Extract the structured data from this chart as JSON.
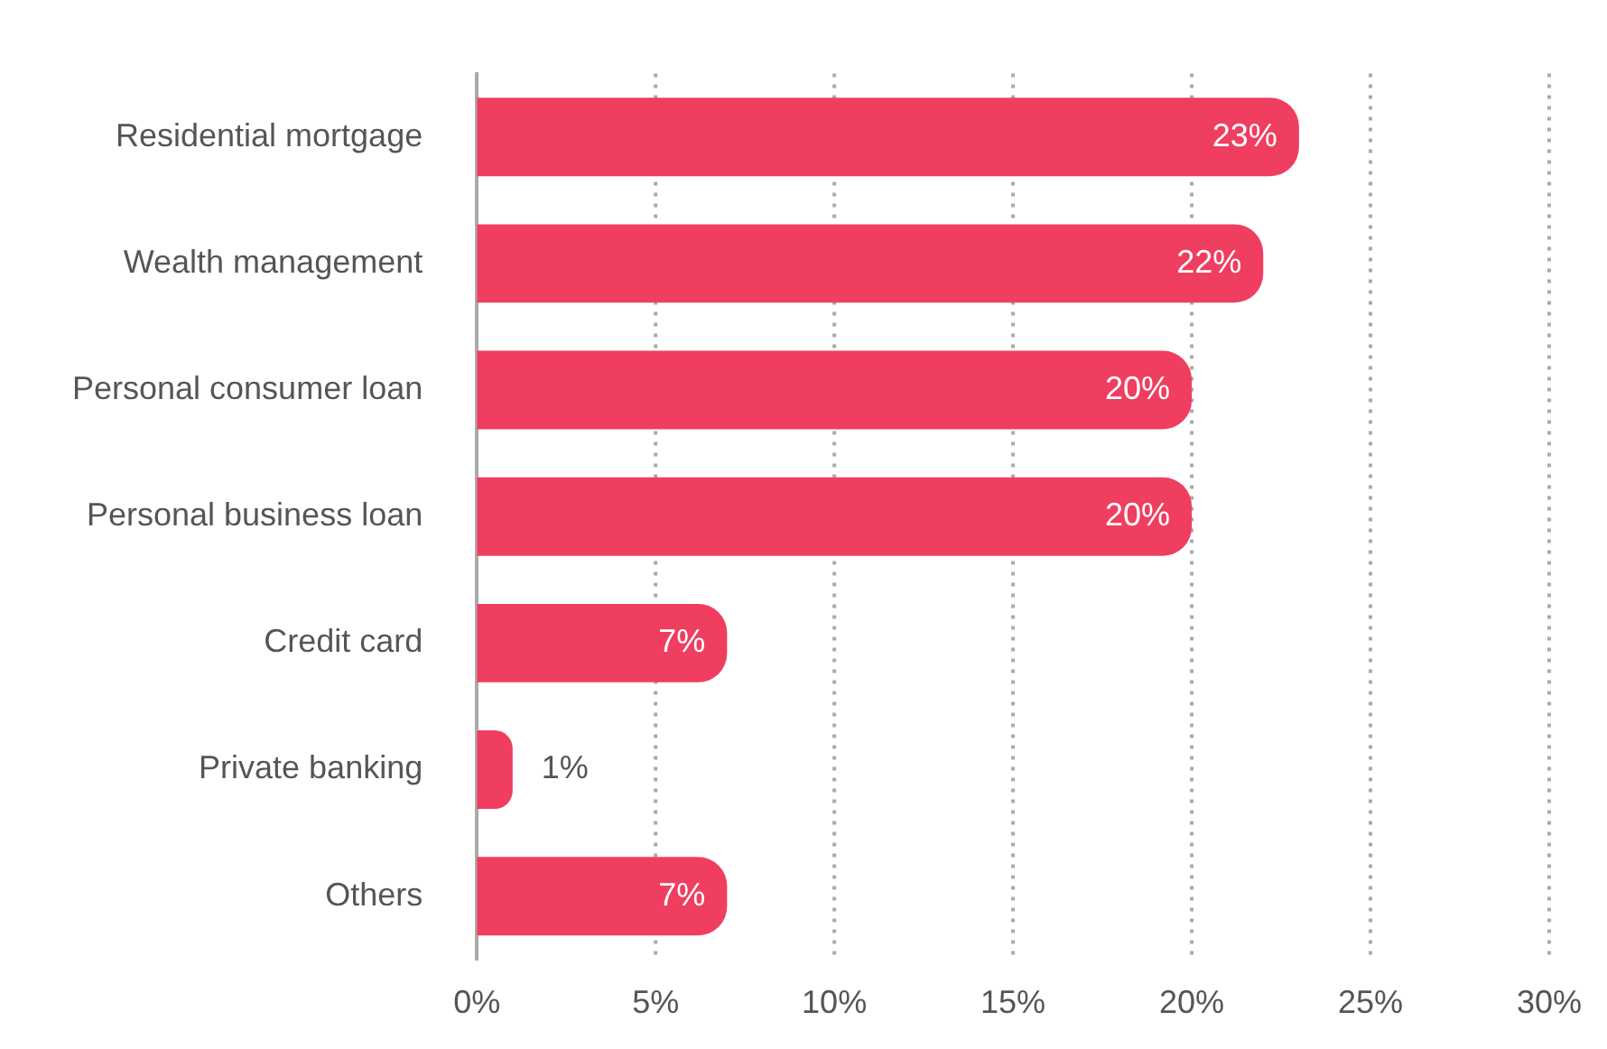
{
  "chart_data": {
    "type": "bar",
    "orientation": "horizontal",
    "categories": [
      "Residential mortgage",
      "Wealth management",
      "Personal consumer loan",
      "Personal business loan",
      "Credit card",
      "Private banking",
      "Others"
    ],
    "values": [
      23,
      22,
      20,
      20,
      7,
      1,
      7
    ],
    "value_labels": [
      "23%",
      "22%",
      "20%",
      "20%",
      "7%",
      "1%",
      "7%"
    ],
    "color": "#ef3e5f",
    "xlim": [
      0,
      30
    ],
    "xticks": [
      {
        "value": 0,
        "label": "0%"
      },
      {
        "value": 5,
        "label": "5%"
      },
      {
        "value": 10,
        "label": "10%"
      },
      {
        "value": 15,
        "label": "15%"
      },
      {
        "value": 20,
        "label": "20%"
      },
      {
        "value": 25,
        "label": "25%"
      },
      {
        "value": 30,
        "label": "30%"
      }
    ],
    "grid": "x",
    "legend": false
  }
}
